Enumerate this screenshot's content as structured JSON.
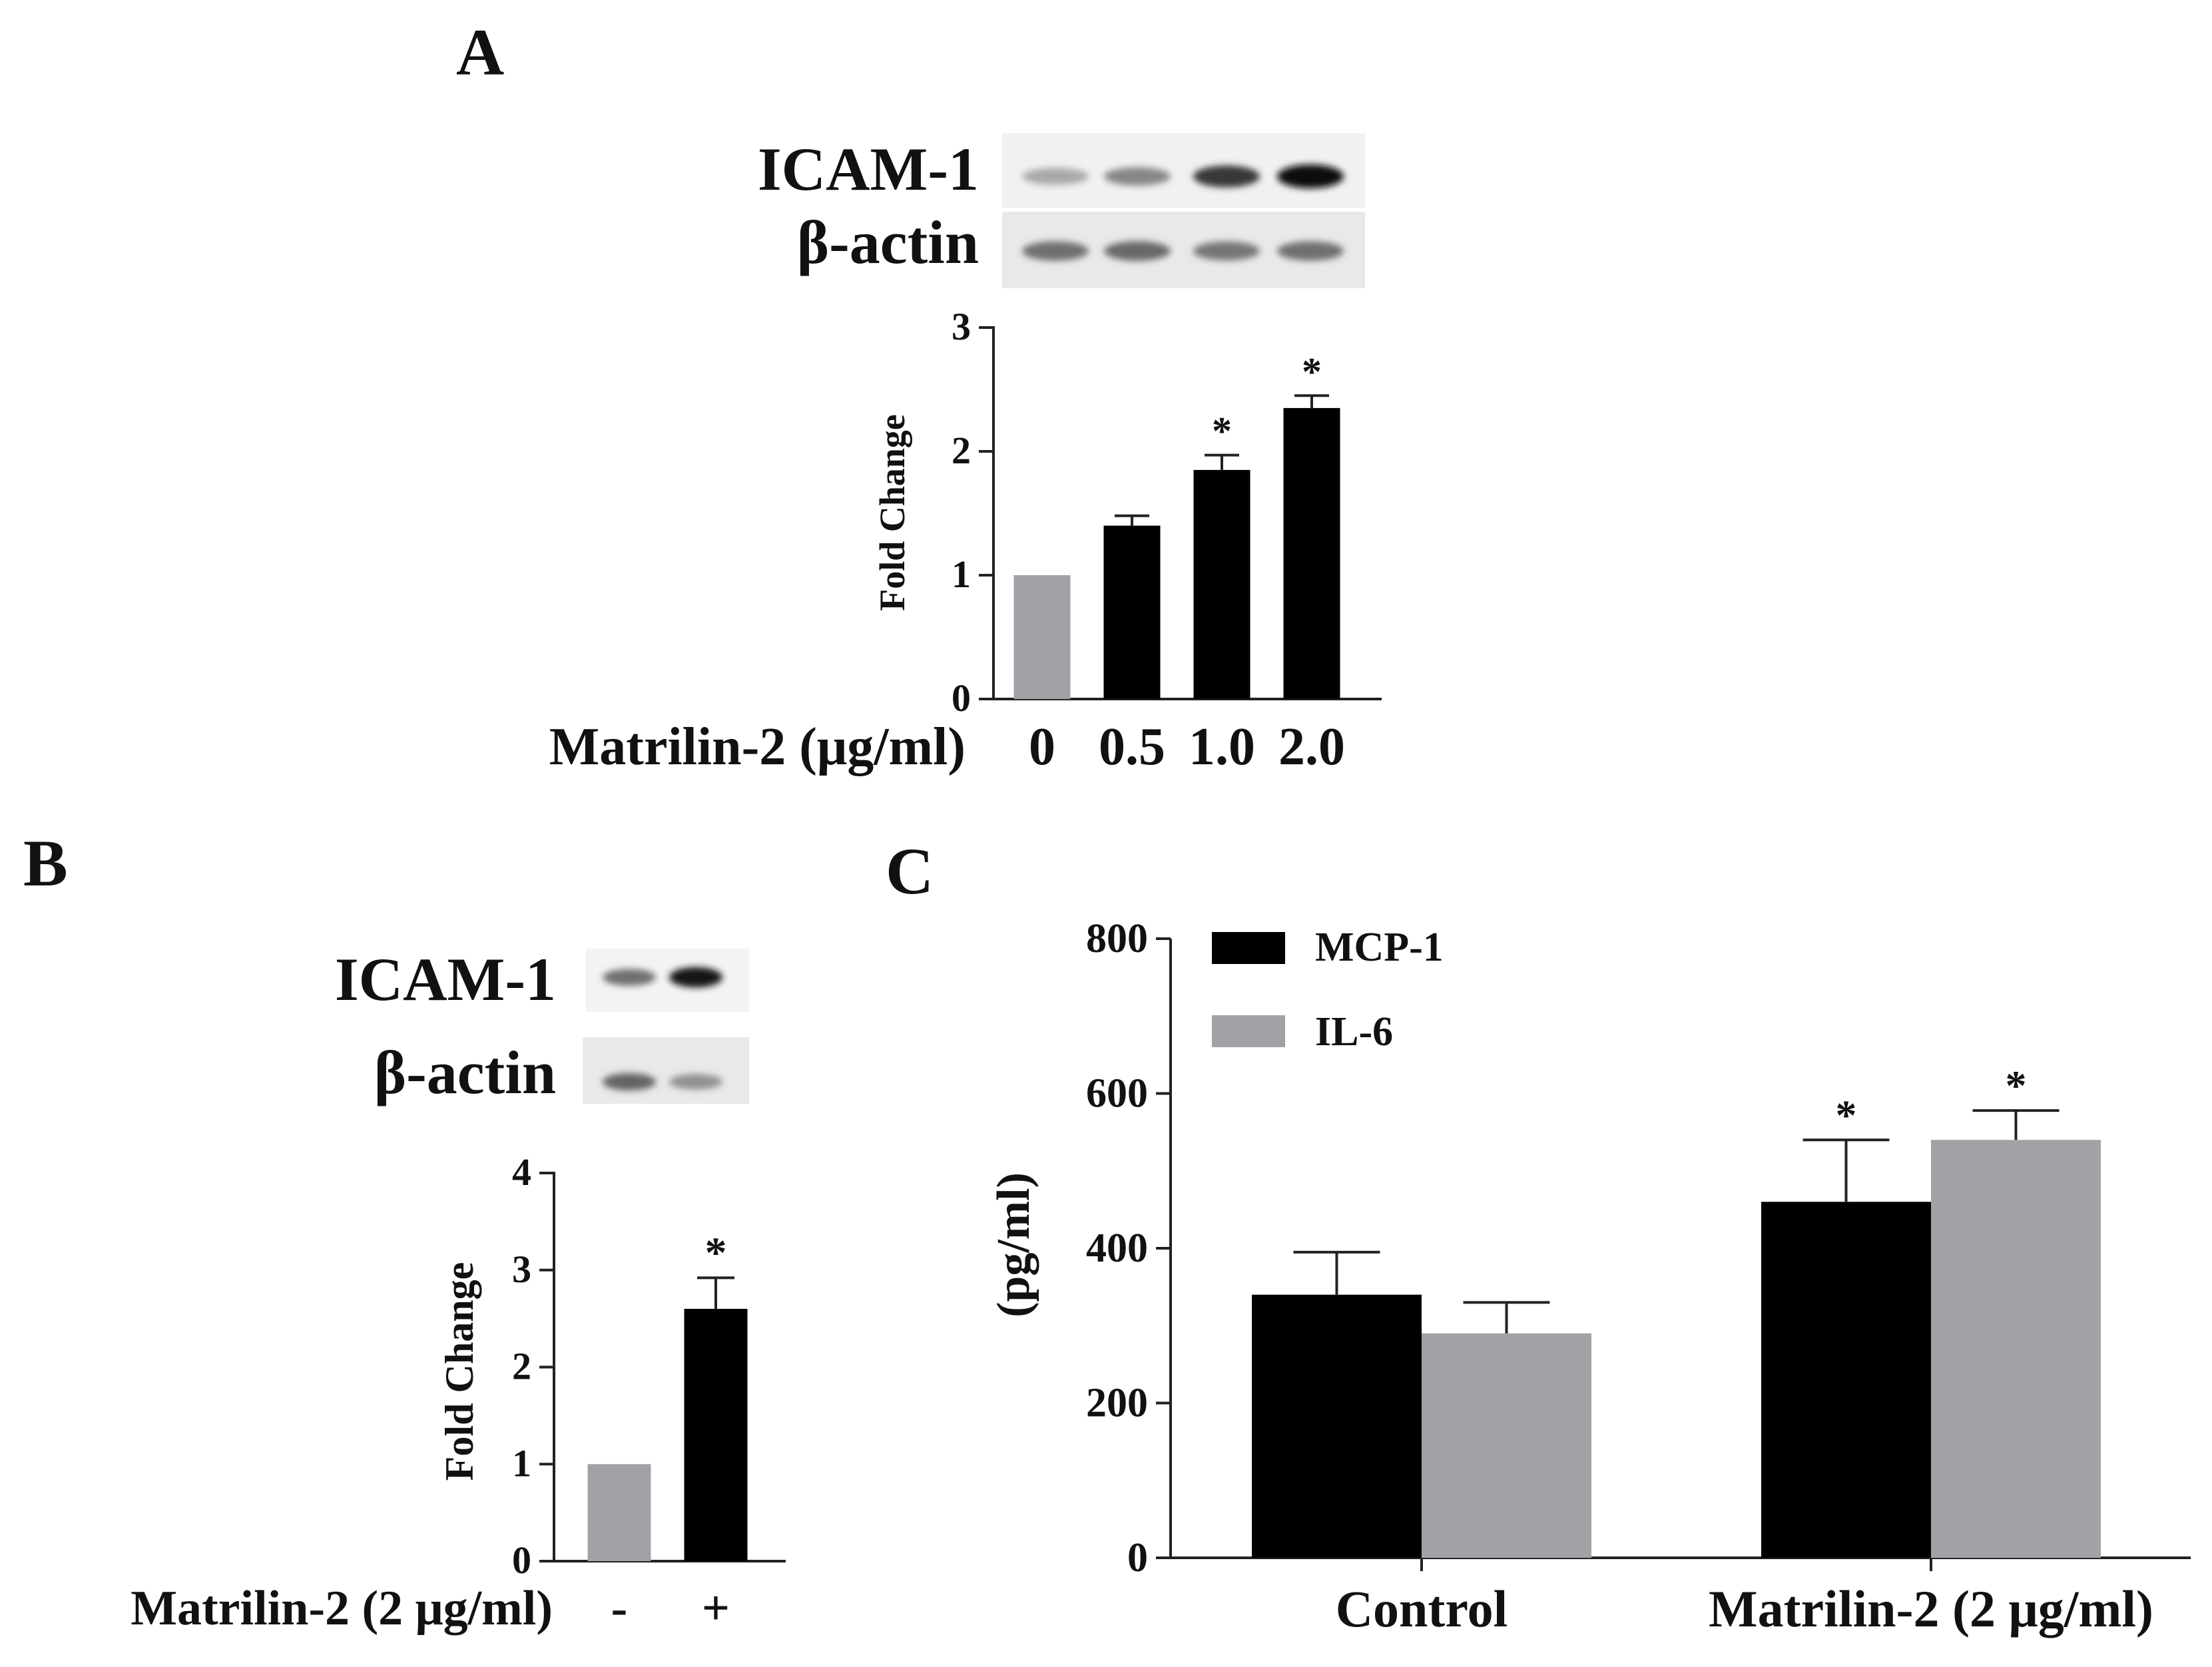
{
  "panels": {
    "A": {
      "letter": "A",
      "blot": {
        "rows": [
          "ICAM-1",
          "β-actin"
        ],
        "band_intensity": [
          [
            0.3,
            0.45,
            0.8,
            0.98
          ],
          [
            0.55,
            0.58,
            0.52,
            0.55
          ]
        ]
      }
    },
    "B": {
      "letter": "B",
      "blot": {
        "rows": [
          "ICAM-1",
          "β-actin"
        ],
        "band_intensity": [
          [
            0.55,
            0.95
          ],
          [
            0.6,
            0.4
          ]
        ]
      }
    },
    "C": {
      "letter": "C"
    }
  },
  "colors": {
    "black_bar": "#000000",
    "gray_bar": "#a3a1a6",
    "axis": "#222222"
  },
  "chart_data": [
    {
      "id": "A",
      "type": "bar",
      "ylabel": "Fold Change",
      "xlabel": "Matrilin-2 (μg/ml)",
      "categories": [
        "0",
        "0.5",
        "1.0",
        "2.0"
      ],
      "values": [
        1.0,
        1.4,
        1.85,
        2.35
      ],
      "errors": [
        0,
        0.08,
        0.12,
        0.1
      ],
      "significance": [
        "",
        "",
        "*",
        "*"
      ],
      "bar_colors": [
        "gray",
        "black",
        "black",
        "black"
      ],
      "ylim": [
        0,
        3
      ],
      "yticks": [
        "0",
        "1",
        "2",
        "3"
      ],
      "grid": false
    },
    {
      "id": "B",
      "type": "bar",
      "ylabel": "Fold Change",
      "xlabel": "Matrilin-2 (2 μg/ml)",
      "categories": [
        "-",
        "+"
      ],
      "values": [
        1.0,
        2.6
      ],
      "errors": [
        0,
        0.32
      ],
      "significance": [
        "",
        "*"
      ],
      "bar_colors": [
        "gray",
        "black"
      ],
      "ylim": [
        0,
        4
      ],
      "yticks": [
        "0",
        "1",
        "2",
        "3",
        "4"
      ],
      "grid": false
    },
    {
      "id": "C",
      "type": "bar",
      "ylabel": "(pg/ml)",
      "categories": [
        "Control",
        "Matrilin-2 (2 μg/ml)"
      ],
      "series": [
        {
          "name": "MCP-1",
          "color": "black",
          "values": [
            340,
            460
          ],
          "errors": [
            55,
            80
          ],
          "significance": [
            "",
            "*"
          ]
        },
        {
          "name": "IL-6",
          "color": "gray",
          "values": [
            290,
            540
          ],
          "errors": [
            40,
            38
          ],
          "significance": [
            "",
            "*"
          ]
        }
      ],
      "ylim": [
        0,
        800
      ],
      "yticks": [
        "0",
        "200",
        "400",
        "600",
        "800"
      ],
      "legend": "top-left",
      "grid": false
    }
  ]
}
